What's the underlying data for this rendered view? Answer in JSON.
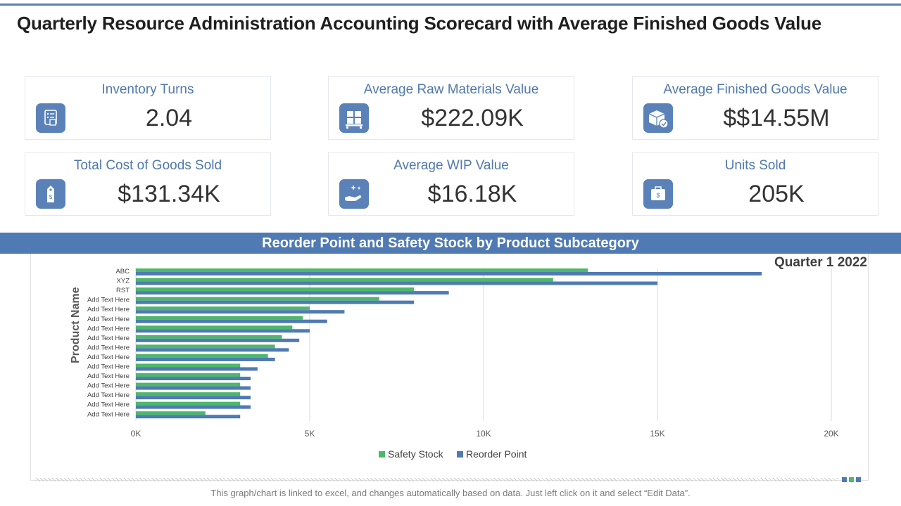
{
  "title": "Quarterly Resource Administration Accounting Scorecard with Average Finished Goods Value",
  "kpis": [
    {
      "label": "Inventory Turns",
      "value": "2.04",
      "icon": "checklist-icon"
    },
    {
      "label": "Average Raw Materials Value",
      "value": "$222.09K",
      "icon": "pallet-boxes-icon"
    },
    {
      "label": "Average Finished Goods Value",
      "value": "$$14.55M",
      "icon": "box-check-icon"
    },
    {
      "label": "Total Cost of Goods Sold",
      "value": "$131.34K",
      "icon": "price-tag-icon"
    },
    {
      "label": "Average WIP Value",
      "value": "$16.18K",
      "icon": "hand-sparkle-icon"
    },
    {
      "label": "Units Sold",
      "value": "205K",
      "icon": "cash-register-icon"
    }
  ],
  "chart_banner": "Reorder Point and Safety Stock by Product Subcategory",
  "quarter_label": "Quarter 1 2022",
  "footnote": "This graph/chart is linked to excel, and changes automatically based on data. Just left click on it and select “Edit Data”.",
  "colors": {
    "safety": "#4db86c",
    "reorder": "#4f7ab3",
    "accent": "#5079ad"
  },
  "chart_data": {
    "type": "bar",
    "orientation": "horizontal",
    "ylabel": "Product Name",
    "xlabel": "",
    "xlim": [
      0,
      20000
    ],
    "xticks": [
      0,
      5000,
      10000,
      15000,
      20000
    ],
    "xtick_labels": [
      "0K",
      "5K",
      "10K",
      "15K",
      "20K"
    ],
    "categories": [
      "ABC",
      "XYZ",
      "RST",
      "Add Text Here",
      "Add Text Here",
      "Add Text Here",
      "Add Text Here",
      "Add Text Here",
      "Add Text Here",
      "Add Text Here",
      "Add Text Here",
      "Add Text Here",
      "Add Text Here",
      "Add Text Here",
      "Add Text Here",
      "Add Text Here"
    ],
    "series": [
      {
        "name": "Safety Stock",
        "values": [
          13000,
          12000,
          8000,
          7000,
          5000,
          4800,
          4500,
          4200,
          4000,
          3800,
          3000,
          3000,
          3000,
          3000,
          3000,
          2000
        ]
      },
      {
        "name": "Reorder Point",
        "values": [
          18000,
          15000,
          9000,
          8000,
          6000,
          5500,
          5000,
          4700,
          4400,
          4000,
          3500,
          3300,
          3300,
          3300,
          3300,
          3000
        ]
      }
    ],
    "legend": "bottom-center",
    "grid": true
  }
}
